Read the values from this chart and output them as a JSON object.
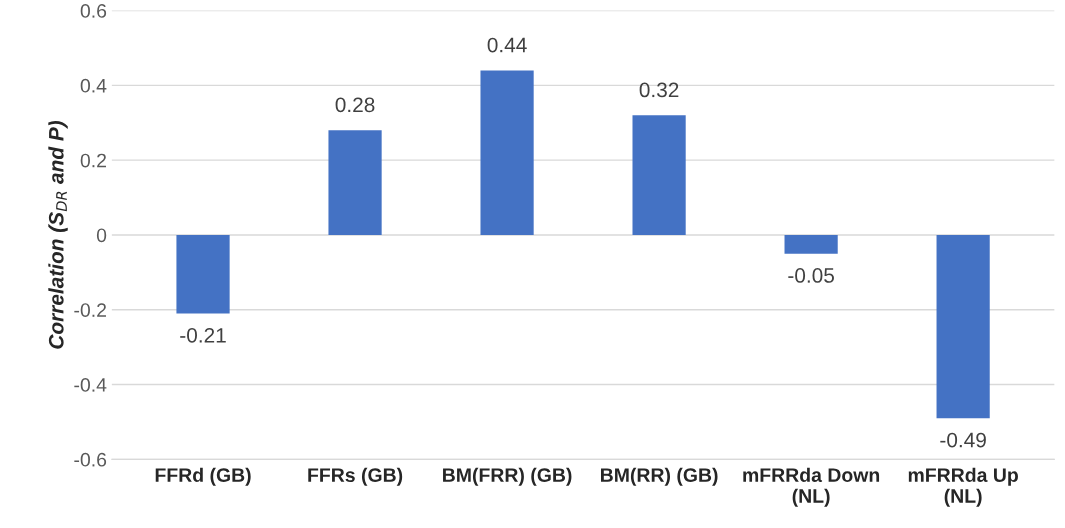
{
  "chart_data": {
    "type": "bar",
    "ylabel": "Correlation (S$_{DR}$ and P)",
    "categories": [
      "FFRd (GB)",
      "FFRs (GB)",
      "BM(FRR) (GB)",
      "BM(RR) (GB)",
      "mFRRda Down (NL)",
      "mFRRda Up (NL)"
    ],
    "values": [
      -0.21,
      0.28,
      0.44,
      0.32,
      -0.05,
      -0.49
    ],
    "color": "#4472c4",
    "ylim": [
      -0.6,
      0.6
    ],
    "yticks": [
      -0.6,
      -0.4,
      -0.2,
      0,
      0.2,
      0.4,
      0.6
    ],
    "grid": "y",
    "data_labels": true
  }
}
